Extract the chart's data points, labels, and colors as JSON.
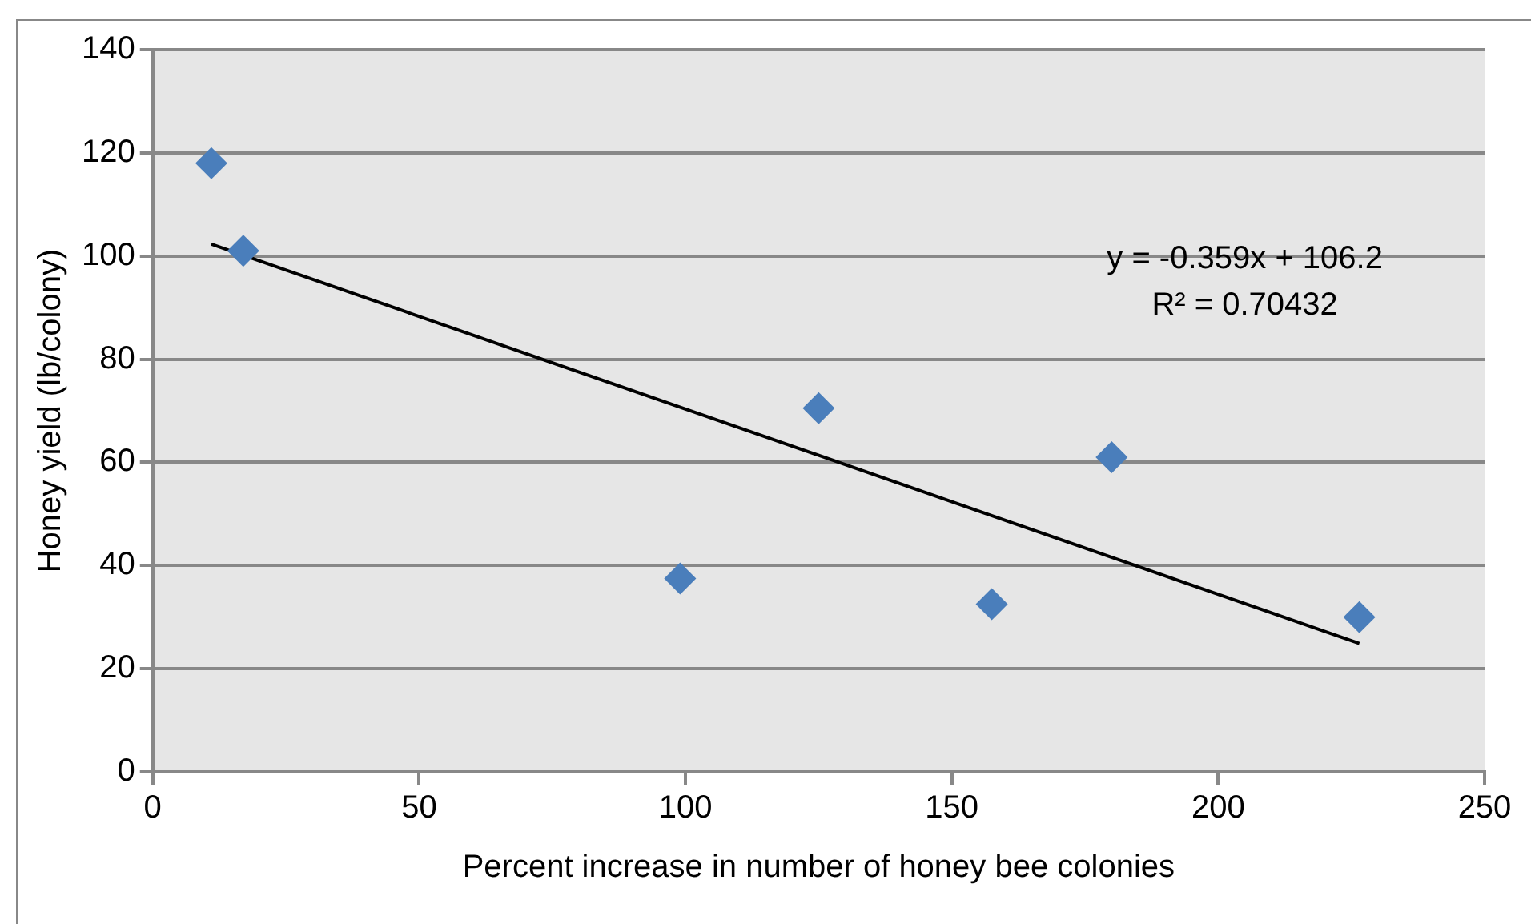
{
  "chart_data": {
    "type": "scatter",
    "xlabel": "Percent increase in number of honey bee colonies",
    "ylabel": "Honey yield (lb/colony)",
    "xlim": [
      0,
      250
    ],
    "xticks": [
      0,
      50,
      100,
      150,
      200,
      250
    ],
    "ylim": [
      0,
      140
    ],
    "yticks": [
      0,
      20,
      40,
      60,
      80,
      100,
      120,
      140
    ],
    "grid": "y",
    "legend": false,
    "annotations": [
      "y = -0.359x + 106.2",
      "R² = 0.70432"
    ],
    "series": [
      {
        "marker": "diamond",
        "color": "#4a7ebb",
        "x": [
          11,
          17,
          99,
          125,
          157.5,
          180,
          226.5
        ],
        "values": [
          118,
          101,
          37.5,
          70.5,
          32.5,
          61,
          30
        ]
      },
      {
        "type": "line",
        "marker": "none",
        "color": "#000000",
        "x": [
          11,
          226.5
        ],
        "values": [
          102.3,
          24.9
        ]
      }
    ]
  }
}
